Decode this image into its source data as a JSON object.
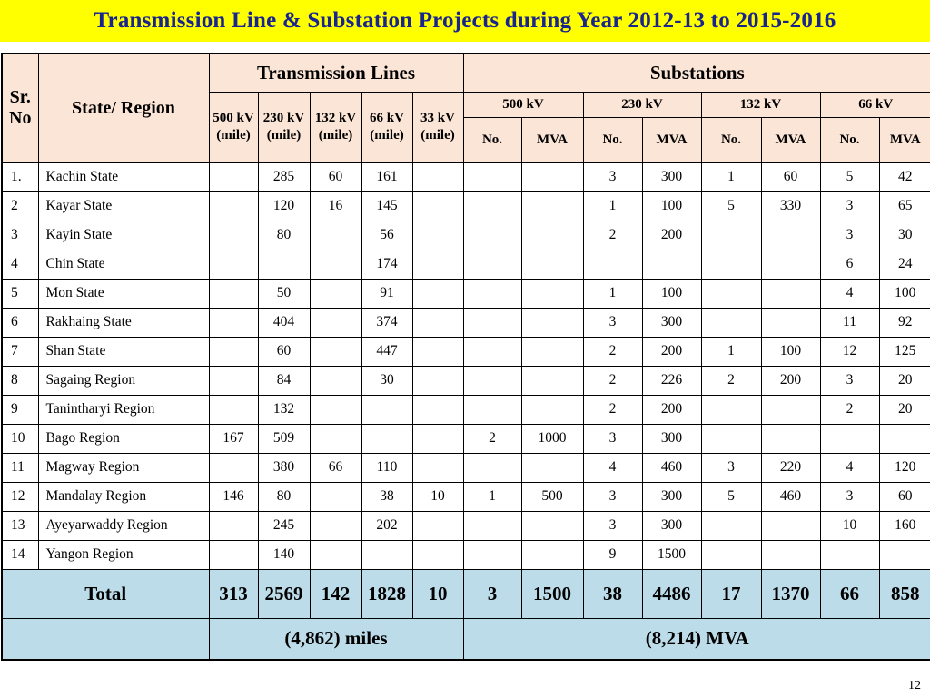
{
  "title": "Transmission Line & Substation Projects  during Year 2012-13 to 2015-2016",
  "page_number": "12",
  "colors": {
    "title_bg": "#FFFF00",
    "title_text": "#19258F",
    "header_bg": "#FBE5D6",
    "highlight_bg": "#BDDCEA",
    "border": "#000000"
  },
  "table": {
    "header": {
      "sr_no": "Sr. No",
      "state_region": "State/ Region",
      "transmission_lines": "Transmission Lines",
      "substations": "Substations",
      "tl_columns": [
        "500 kV (mile)",
        "230 kV (mile)",
        "132 kV (mile)",
        "66 kV (mile)",
        "33 kV (mile)"
      ],
      "sub_groups": [
        "500 kV",
        "230 kV",
        "132 kV",
        "66 kV"
      ],
      "sub_cols": [
        "No.",
        "MVA"
      ]
    },
    "rows": [
      {
        "sr": "1.",
        "state": "Kachin State",
        "values": [
          "",
          "285",
          "60",
          "161",
          "",
          "",
          "",
          "3",
          "300",
          "1",
          "60",
          "5",
          "42"
        ]
      },
      {
        "sr": "2",
        "state": "Kayar State",
        "values": [
          "",
          "120",
          "16",
          "145",
          "",
          "",
          "",
          "1",
          "100",
          "5",
          "330",
          "3",
          "65"
        ]
      },
      {
        "sr": "3",
        "state": "Kayin State",
        "values": [
          "",
          "80",
          "",
          "56",
          "",
          "",
          "",
          "2",
          "200",
          "",
          "",
          "3",
          "30"
        ]
      },
      {
        "sr": "4",
        "state": "Chin State",
        "values": [
          "",
          "",
          "",
          "174",
          "",
          "",
          "",
          "",
          "",
          "",
          "",
          "6",
          "24"
        ]
      },
      {
        "sr": "5",
        "state": "Mon State",
        "values": [
          "",
          "50",
          "",
          "91",
          "",
          "",
          "",
          "1",
          "100",
          "",
          "",
          "4",
          "100"
        ]
      },
      {
        "sr": "6",
        "state": "Rakhaing State",
        "values": [
          "",
          "404",
          "",
          "374",
          "",
          "",
          "",
          "3",
          "300",
          "",
          "",
          "11",
          "92"
        ]
      },
      {
        "sr": "7",
        "state": "Shan State",
        "values": [
          "",
          "60",
          "",
          "447",
          "",
          "",
          "",
          "2",
          "200",
          "1",
          "100",
          "12",
          "125"
        ]
      },
      {
        "sr": "8",
        "state": "Sagaing Region",
        "values": [
          "",
          "84",
          "",
          "30",
          "",
          "",
          "",
          "2",
          "226",
          "2",
          "200",
          "3",
          "20"
        ]
      },
      {
        "sr": "9",
        "state": "Tanintharyi Region",
        "values": [
          "",
          "132",
          "",
          "",
          "",
          "",
          "",
          "2",
          "200",
          "",
          "",
          "2",
          "20"
        ]
      },
      {
        "sr": "10",
        "state": "Bago Region",
        "values": [
          "167",
          "509",
          "",
          "",
          "",
          "2",
          "1000",
          "3",
          "300",
          "",
          "",
          "",
          ""
        ]
      },
      {
        "sr": "11",
        "state": "Magway Region",
        "values": [
          "",
          "380",
          "66",
          "110",
          "",
          "",
          "",
          "4",
          "460",
          "3",
          "220",
          "4",
          "120"
        ]
      },
      {
        "sr": "12",
        "state": "Mandalay Region",
        "values": [
          "146",
          "80",
          "",
          "38",
          "10",
          "1",
          "500",
          "3",
          "300",
          "5",
          "460",
          "3",
          "60"
        ]
      },
      {
        "sr": "13",
        "state": "Ayeyarwaddy Region",
        "values": [
          "",
          "245",
          "",
          "202",
          "",
          "",
          "",
          "3",
          "300",
          "",
          "",
          "10",
          "160"
        ]
      },
      {
        "sr": "14",
        "state": "Yangon Region",
        "values": [
          "",
          "140",
          "",
          "",
          "",
          "",
          "",
          "9",
          "1500",
          "",
          "",
          "",
          ""
        ]
      }
    ],
    "total": {
      "label": "Total",
      "values": [
        "313",
        "2569",
        "142",
        "1828",
        "10",
        "3",
        "1500",
        "38",
        "4486",
        "17",
        "1370",
        "66",
        "858"
      ]
    },
    "summary": {
      "miles": "(4,862) miles",
      "mva": "(8,214) MVA"
    }
  }
}
